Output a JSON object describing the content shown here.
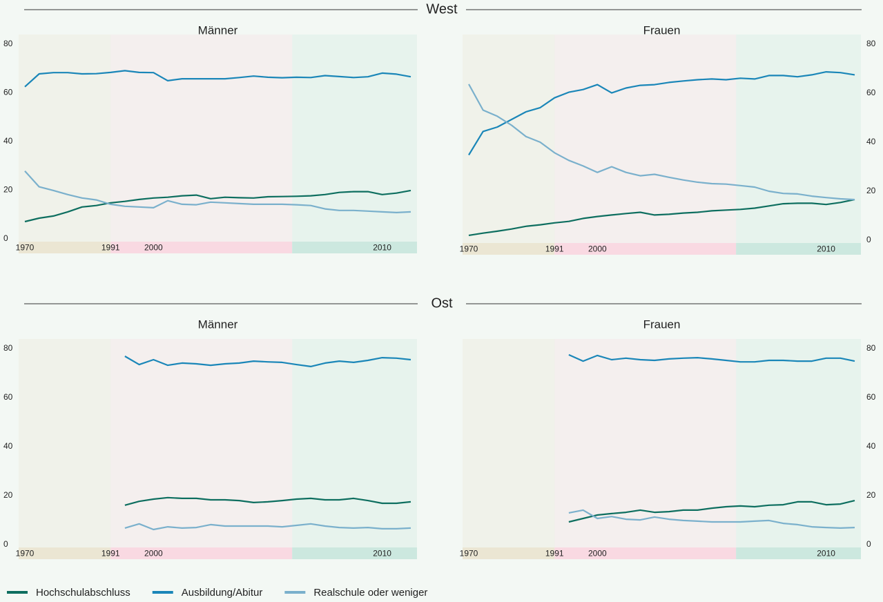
{
  "sections": [
    "West",
    "Ost"
  ],
  "chart_data": [
    {
      "type": "line",
      "title": "Männer",
      "yaxis_side": "left",
      "categories": [
        "1970",
        null,
        null,
        null,
        null,
        null,
        "1991",
        null,
        null,
        "2000",
        null,
        null,
        null,
        null,
        null,
        null,
        null,
        null,
        null,
        null,
        null,
        null,
        null,
        null,
        null,
        "2010",
        null,
        null
      ],
      "ylim": [
        0,
        80
      ],
      "yticks": [
        0,
        20,
        40,
        60,
        80
      ],
      "series": [
        {
          "name": "Hochschulabschluss",
          "color": "#0d6e5f",
          "values": [
            7.1,
            8.5,
            9.4,
            11.1,
            13.1,
            13.7,
            14.8,
            15.4,
            16.2,
            16.8,
            17.1,
            17.7,
            18,
            16.5,
            17.1,
            16.9,
            16.8,
            17.3,
            17.4,
            17.5,
            17.7,
            18.2,
            19.1,
            19.4,
            19.4,
            18.2,
            18.8,
            19.9
          ]
        },
        {
          "name": "Ausbildung/Abitur",
          "color": "#1a86b8",
          "values": [
            62.5,
            67.8,
            68.3,
            68.3,
            67.8,
            67.9,
            68.4,
            69.1,
            68.4,
            68.3,
            65,
            65.8,
            65.8,
            65.8,
            65.8,
            66.3,
            66.9,
            66.4,
            66.2,
            66.4,
            66.3,
            67.1,
            66.7,
            66.3,
            66.6,
            68.1,
            67.7,
            66.6
          ]
        },
        {
          "name": "Realschule oder weniger",
          "color": "#7ab0cc",
          "values": [
            27.9,
            21.4,
            19.9,
            18.2,
            16.8,
            16,
            14.2,
            13.4,
            13.1,
            12.8,
            15.7,
            14.2,
            14,
            15.1,
            14.8,
            14.5,
            14.2,
            14.2,
            14.2,
            14,
            13.7,
            12.3,
            11.7,
            11.7,
            11.4,
            11.1,
            10.8,
            11.1
          ]
        }
      ]
    },
    {
      "type": "line",
      "title": "Frauen",
      "yaxis_side": "right",
      "categories": [
        "1970",
        null,
        null,
        null,
        null,
        null,
        "1991",
        null,
        null,
        "2000",
        null,
        null,
        null,
        null,
        null,
        null,
        null,
        null,
        null,
        null,
        null,
        null,
        null,
        null,
        null,
        "2010",
        null,
        null
      ],
      "ylim": [
        0,
        80
      ],
      "yticks": [
        0,
        20,
        40,
        60,
        80
      ],
      "series": [
        {
          "name": "Hochschulabschluss",
          "color": "#0d6e5f",
          "values": [
            2,
            2.9,
            3.7,
            4.6,
            5.7,
            6.3,
            7.1,
            7.7,
            8.9,
            9.7,
            10.3,
            10.9,
            11.4,
            10.3,
            10.6,
            11.1,
            11.4,
            12,
            12.3,
            12.6,
            13.1,
            14,
            14.9,
            15.1,
            15.1,
            14.6,
            15.4,
            16.6
          ]
        },
        {
          "name": "Ausbildung/Abitur",
          "color": "#1a86b8",
          "values": [
            34.8,
            44.4,
            46.2,
            49.3,
            52.4,
            54.1,
            58.1,
            60.4,
            61.5,
            63.5,
            60.1,
            62.1,
            63.2,
            63.5,
            64.4,
            65,
            65.5,
            65.8,
            65.5,
            66.1,
            65.8,
            67.2,
            67.2,
            66.7,
            67.5,
            68.7,
            68.4,
            67.5
          ]
        },
        {
          "name": "Realschule oder weniger",
          "color": "#7ab0cc",
          "values": [
            63.7,
            53.1,
            50.6,
            46.9,
            42.3,
            40,
            35.7,
            32.6,
            30.3,
            27.7,
            30,
            27.7,
            26.3,
            26.9,
            25.7,
            24.6,
            23.7,
            23.1,
            22.9,
            22.3,
            21.7,
            20,
            19.1,
            18.9,
            18,
            17.4,
            16.9,
            16.6
          ]
        }
      ]
    },
    {
      "type": "line",
      "title": "Männer",
      "yaxis_side": "left",
      "categories": [
        "1970",
        null,
        null,
        null,
        null,
        null,
        "1991",
        null,
        null,
        "2000",
        null,
        null,
        null,
        null,
        null,
        null,
        null,
        null,
        null,
        null,
        null,
        null,
        null,
        null,
        null,
        "2010",
        null,
        null
      ],
      "ylim": [
        0,
        80
      ],
      "yticks": [
        0,
        20,
        40,
        60,
        80
      ],
      "series": [
        {
          "name": "Hochschulabschluss",
          "color": "#0d6e5f",
          "values": [
            null,
            null,
            null,
            null,
            null,
            null,
            null,
            16.1,
            17.7,
            18.6,
            19.2,
            18.9,
            18.9,
            18.3,
            18.3,
            18,
            17.2,
            17.5,
            18,
            18.6,
            18.9,
            18.3,
            18.3,
            18.9,
            18,
            16.9,
            16.9,
            17.5
          ]
        },
        {
          "name": "Ausbildung/Abitur",
          "color": "#1a86b8",
          "values": [
            null,
            null,
            null,
            null,
            null,
            null,
            null,
            76.9,
            73.5,
            75.5,
            73.2,
            74.1,
            73.8,
            73.2,
            73.8,
            74.1,
            74.9,
            74.6,
            74.4,
            73.5,
            72.7,
            74.1,
            74.9,
            74.4,
            75.2,
            76.3,
            76.1,
            75.5
          ]
        },
        {
          "name": "Realschule oder weniger",
          "color": "#7ab0cc",
          "values": [
            null,
            null,
            null,
            null,
            null,
            null,
            null,
            6.8,
            8.5,
            6.2,
            7.3,
            6.8,
            7,
            8.2,
            7.6,
            7.6,
            7.6,
            7.6,
            7.3,
            7.9,
            8.5,
            7.6,
            7,
            6.8,
            7,
            6.5,
            6.5,
            6.8
          ]
        }
      ]
    },
    {
      "type": "line",
      "title": "Frauen",
      "yaxis_side": "right",
      "categories": [
        "1970",
        null,
        null,
        null,
        null,
        null,
        "1991",
        null,
        null,
        "2000",
        null,
        null,
        null,
        null,
        null,
        null,
        null,
        null,
        null,
        null,
        null,
        null,
        null,
        null,
        null,
        "2010",
        null,
        null
      ],
      "ylim": [
        0,
        80
      ],
      "yticks": [
        0,
        20,
        40,
        60,
        80
      ],
      "series": [
        {
          "name": "Hochschulabschluss",
          "color": "#0d6e5f",
          "values": [
            null,
            null,
            null,
            null,
            null,
            null,
            null,
            9.3,
            10.7,
            12.1,
            12.7,
            13.2,
            14.1,
            13.2,
            13.5,
            14.1,
            14.1,
            14.9,
            15.5,
            15.8,
            15.5,
            16.1,
            16.3,
            17.5,
            17.5,
            16.3,
            16.6,
            18
          ]
        },
        {
          "name": "Ausbildung/Abitur",
          "color": "#1a86b8",
          "values": [
            null,
            null,
            null,
            null,
            null,
            null,
            null,
            77.5,
            74.9,
            77.2,
            75.5,
            76.1,
            75.5,
            75.2,
            75.8,
            76.1,
            76.3,
            75.8,
            75.2,
            74.6,
            74.6,
            75.2,
            75.2,
            74.9,
            74.9,
            76.1,
            76.1,
            74.9
          ]
        },
        {
          "name": "Realschule oder weniger",
          "color": "#7ab0cc",
          "values": [
            null,
            null,
            null,
            null,
            null,
            null,
            null,
            13,
            14.1,
            10.7,
            11.5,
            10.4,
            10.1,
            11.3,
            10.4,
            9.9,
            9.6,
            9.3,
            9.3,
            9.3,
            9.6,
            9.9,
            8.7,
            8.2,
            7.3,
            7,
            6.8,
            7
          ]
        }
      ]
    }
  ]
}
